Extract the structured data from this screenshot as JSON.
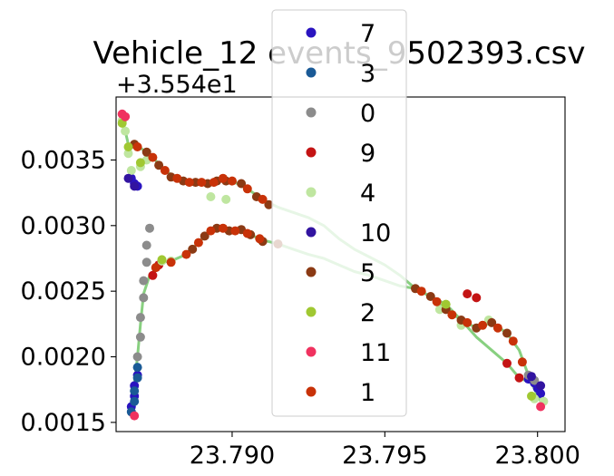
{
  "chart_data": {
    "type": "scatter",
    "title": "Vehicle_12 events_9502393.csv",
    "xlabel": "",
    "ylabel": "",
    "y_offset_label": "+3.554e1",
    "y_offset": 35.54,
    "xlim": [
      23.7862,
      23.8009
    ],
    "ylim": [
      0.00143,
      0.00398
    ],
    "x_ticks": [
      23.79,
      23.795,
      23.8
    ],
    "x_tick_labels": [
      "23.790",
      "23.795",
      "23.800"
    ],
    "y_ticks": [
      0.0015,
      0.002,
      0.0025,
      0.003,
      0.0035
    ],
    "y_tick_labels": [
      "0.0015",
      "0.0020",
      "0.0025",
      "0.0030",
      "0.0035"
    ],
    "grid": false,
    "legend_position": "top-center, overlapping plot",
    "series": [
      {
        "name": "7",
        "color": "#2a14c0",
        "points": [
          [
            23.7867,
            0.00162
          ],
          [
            23.7868,
            0.0017
          ],
          [
            23.7868,
            0.00178
          ],
          [
            23.7869,
            0.00186
          ],
          [
            23.7867,
            0.00336
          ],
          [
            23.7868,
            0.00332
          ],
          [
            23.7869,
            0.0033
          ],
          [
            23.7997,
            0.00183
          ],
          [
            23.7999,
            0.0018
          ],
          [
            23.8,
            0.00176
          ],
          [
            23.8001,
            0.00172
          ]
        ]
      },
      {
        "name": "3",
        "color": "#1a5a96",
        "points": [
          [
            23.7867,
            0.00158
          ],
          [
            23.7868,
            0.00166
          ],
          [
            23.7868,
            0.00174
          ],
          [
            23.7869,
            0.00184
          ],
          [
            23.7869,
            0.00192
          ]
        ]
      },
      {
        "name": "0",
        "color": "#8c8c8c",
        "points": [
          [
            23.7869,
            0.002
          ],
          [
            23.787,
            0.00215
          ],
          [
            23.787,
            0.0023
          ],
          [
            23.7871,
            0.00245
          ],
          [
            23.7871,
            0.00258
          ],
          [
            23.7872,
            0.00272
          ],
          [
            23.7872,
            0.00285
          ],
          [
            23.7873,
            0.00298
          ],
          [
            23.7997,
            0.00186
          ],
          [
            23.7999,
            0.00182
          ]
        ]
      },
      {
        "name": "9",
        "color": "#c41414",
        "points": [
          [
            23.7874,
            0.00262
          ],
          [
            23.7875,
            0.00268
          ],
          [
            23.7876,
            0.0027
          ],
          [
            23.7977,
            0.00248
          ],
          [
            23.798,
            0.00245
          ],
          [
            23.799,
            0.00195
          ],
          [
            23.7994,
            0.00184
          ]
        ]
      },
      {
        "name": "4",
        "color": "#bfe6a0",
        "points": [
          [
            23.7864,
            0.0038
          ],
          [
            23.7865,
            0.00372
          ],
          [
            23.7866,
            0.00355
          ],
          [
            23.7867,
            0.00342
          ],
          [
            23.787,
            0.00345
          ],
          [
            23.7872,
            0.0035
          ],
          [
            23.7877,
            0.00273
          ],
          [
            23.788,
            0.00273
          ],
          [
            23.7893,
            0.00322
          ],
          [
            23.7898,
            0.0032
          ],
          [
            23.7968,
            0.00236
          ],
          [
            23.7975,
            0.00224
          ],
          [
            23.7984,
            0.00228
          ],
          [
            23.7999,
            0.00168
          ],
          [
            23.8002,
            0.00166
          ]
        ]
      },
      {
        "name": "10",
        "color": "#3214a0",
        "points": [
          [
            23.7866,
            0.00336
          ],
          [
            23.7868,
            0.0033
          ],
          [
            23.7998,
            0.00185
          ],
          [
            23.8001,
            0.00178
          ]
        ]
      },
      {
        "name": "5",
        "color": "#8b3a14",
        "points": [
          [
            23.7868,
            0.00362
          ],
          [
            23.7872,
            0.00356
          ],
          [
            23.7876,
            0.00346
          ],
          [
            23.788,
            0.00337
          ],
          [
            23.7884,
            0.00334
          ],
          [
            23.7888,
            0.00333
          ],
          [
            23.7892,
            0.00332
          ],
          [
            23.7895,
            0.00334
          ],
          [
            23.7898,
            0.00334
          ],
          [
            23.7903,
            0.00332
          ],
          [
            23.7908,
            0.00322
          ],
          [
            23.7912,
            0.00316
          ],
          [
            23.7887,
            0.00282
          ],
          [
            23.7891,
            0.00292
          ],
          [
            23.7895,
            0.00298
          ],
          [
            23.7899,
            0.00296
          ],
          [
            23.7903,
            0.00297
          ],
          [
            23.7906,
            0.00293
          ],
          [
            23.791,
            0.00288
          ],
          [
            23.7915,
            0.00286
          ],
          [
            23.796,
            0.00252
          ],
          [
            23.7965,
            0.00246
          ],
          [
            23.797,
            0.00236
          ],
          [
            23.7975,
            0.00228
          ],
          [
            23.798,
            0.00222
          ],
          [
            23.7985,
            0.00226
          ],
          [
            23.799,
            0.00218
          ]
        ]
      },
      {
        "name": "2",
        "color": "#a0c832",
        "points": [
          [
            23.7864,
            0.00378
          ],
          [
            23.7866,
            0.0036
          ],
          [
            23.787,
            0.00348
          ],
          [
            23.7877,
            0.00274
          ],
          [
            23.797,
            0.0024
          ],
          [
            23.7998,
            0.0017
          ]
        ]
      },
      {
        "name": "11",
        "color": "#f0325f",
        "points": [
          [
            23.7864,
            0.00385
          ],
          [
            23.7865,
            0.00383
          ],
          [
            23.7868,
            0.00155
          ],
          [
            23.8001,
            0.00162
          ]
        ]
      },
      {
        "name": "1",
        "color": "#c83208",
        "points": [
          [
            23.7869,
            0.0036
          ],
          [
            23.7874,
            0.00352
          ],
          [
            23.7878,
            0.00342
          ],
          [
            23.7882,
            0.00336
          ],
          [
            23.7886,
            0.00333
          ],
          [
            23.789,
            0.00333
          ],
          [
            23.7894,
            0.00333
          ],
          [
            23.7897,
            0.00336
          ],
          [
            23.79,
            0.00334
          ],
          [
            23.7905,
            0.00328
          ],
          [
            23.791,
            0.0032
          ],
          [
            23.7875,
            0.00268
          ],
          [
            23.788,
            0.00272
          ],
          [
            23.7885,
            0.00278
          ],
          [
            23.7889,
            0.00287
          ],
          [
            23.7893,
            0.00296
          ],
          [
            23.7897,
            0.00298
          ],
          [
            23.7901,
            0.00296
          ],
          [
            23.7905,
            0.00294
          ],
          [
            23.7909,
            0.0029
          ],
          [
            23.7962,
            0.0025
          ],
          [
            23.7967,
            0.00242
          ],
          [
            23.7972,
            0.00232
          ],
          [
            23.7977,
            0.00226
          ],
          [
            23.7982,
            0.00224
          ],
          [
            23.7987,
            0.00222
          ],
          [
            23.7992,
            0.00212
          ],
          [
            23.7995,
            0.00196
          ]
        ]
      }
    ],
    "guide_lines": [
      {
        "color": "#88d080",
        "points": [
          [
            23.7864,
            0.00382
          ],
          [
            23.7866,
            0.00362
          ],
          [
            23.7869,
            0.00361
          ],
          [
            23.7874,
            0.00352
          ],
          [
            23.7878,
            0.00342
          ],
          [
            23.7882,
            0.00336
          ],
          [
            23.7886,
            0.00333
          ],
          [
            23.789,
            0.00333
          ],
          [
            23.7894,
            0.00333
          ],
          [
            23.7897,
            0.00336
          ],
          [
            23.79,
            0.00334
          ],
          [
            23.7905,
            0.00328
          ],
          [
            23.791,
            0.0032
          ],
          [
            23.7915,
            0.00314
          ],
          [
            23.792,
            0.0031
          ],
          [
            23.7925,
            0.00306
          ],
          [
            23.793,
            0.003
          ],
          [
            23.7935,
            0.0029
          ],
          [
            23.794,
            0.00282
          ],
          [
            23.7945,
            0.00276
          ],
          [
            23.795,
            0.0027
          ],
          [
            23.7955,
            0.00262
          ],
          [
            23.796,
            0.00252
          ],
          [
            23.7965,
            0.00246
          ],
          [
            23.797,
            0.00236
          ],
          [
            23.7975,
            0.00228
          ],
          [
            23.798,
            0.00222
          ],
          [
            23.7985,
            0.00226
          ],
          [
            23.799,
            0.00218
          ],
          [
            23.7994,
            0.00205
          ],
          [
            23.7997,
            0.00186
          ],
          [
            23.8,
            0.00176
          ],
          [
            23.8002,
            0.00168
          ]
        ]
      },
      {
        "color": "#88d080",
        "points": [
          [
            23.7867,
            0.00158
          ],
          [
            23.7868,
            0.0018
          ],
          [
            23.7869,
            0.002
          ],
          [
            23.787,
            0.00225
          ],
          [
            23.7871,
            0.00248
          ],
          [
            23.7873,
            0.00262
          ],
          [
            23.7877,
            0.00272
          ],
          [
            23.788,
            0.00273
          ],
          [
            23.7885,
            0.00278
          ],
          [
            23.7889,
            0.00287
          ],
          [
            23.7893,
            0.00296
          ],
          [
            23.7897,
            0.00298
          ],
          [
            23.7901,
            0.00296
          ],
          [
            23.7905,
            0.00294
          ],
          [
            23.791,
            0.00289
          ],
          [
            23.7915,
            0.00286
          ],
          [
            23.792,
            0.00282
          ],
          [
            23.7925,
            0.00278
          ],
          [
            23.793,
            0.00275
          ],
          [
            23.7935,
            0.0027
          ],
          [
            23.794,
            0.00265
          ],
          [
            23.7945,
            0.00262
          ],
          [
            23.795,
            0.00258
          ],
          [
            23.7955,
            0.00254
          ],
          [
            23.796,
            0.00252
          ],
          [
            23.7965,
            0.00246
          ],
          [
            23.797,
            0.0024
          ],
          [
            23.7975,
            0.00228
          ],
          [
            23.798,
            0.00215
          ],
          [
            23.7985,
            0.00205
          ],
          [
            23.799,
            0.00195
          ],
          [
            23.7994,
            0.00184
          ],
          [
            23.7998,
            0.0018
          ],
          [
            23.8001,
            0.00166
          ]
        ]
      }
    ]
  }
}
